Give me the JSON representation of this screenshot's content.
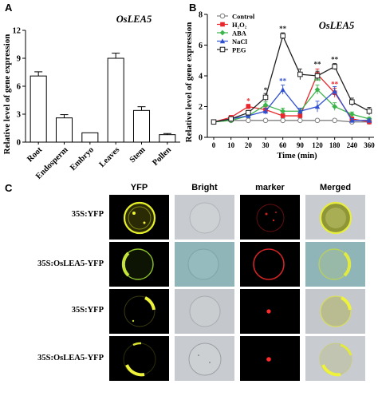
{
  "panel_labels": {
    "a": "A",
    "b": "B",
    "c": "C"
  },
  "chart_data": [
    {
      "type": "bar",
      "title": "OsLEA5",
      "ylabel": "Relative level of gene expression",
      "xlabel": "",
      "categories": [
        "Root",
        "Endosperm",
        "Embryo",
        "Leaves",
        "Stem",
        "Pollen"
      ],
      "values": [
        7.1,
        2.6,
        1.0,
        9.0,
        3.4,
        0.8
      ],
      "errors": [
        0.45,
        0.35,
        0.0,
        0.55,
        0.4,
        0.12
      ],
      "ylim": [
        0,
        12
      ],
      "yticks": [
        "0",
        "3",
        "6",
        "9",
        "12"
      ],
      "grid": false
    },
    {
      "type": "line",
      "title": "OsLEA5",
      "ylabel": "Relative level of gene expression",
      "xlabel": "Time (min)",
      "x": [
        "0",
        "10",
        "20",
        "30",
        "60",
        "90",
        "120",
        "180",
        "240",
        "360"
      ],
      "ylim": [
        0,
        8
      ],
      "yticks": [
        "0",
        "2",
        "4",
        "6",
        "8"
      ],
      "legend_position": "top-left",
      "series": [
        {
          "name": "Control",
          "color": "#808080",
          "marker": "circle-open",
          "values": [
            1.0,
            1.1,
            1.1,
            1.1,
            1.1,
            1.1,
            1.1,
            1.1,
            1.0,
            1.0
          ],
          "errors": [
            0.1,
            0.1,
            0.1,
            0.1,
            0.1,
            0.1,
            0.1,
            0.1,
            0.1,
            0.1
          ]
        },
        {
          "name": "H₂O₂",
          "color": "#e8262b",
          "marker": "square",
          "values": [
            1.0,
            1.3,
            2.0,
            1.8,
            1.4,
            1.4,
            4.1,
            2.9,
            1.2,
            1.0
          ],
          "errors": [
            0.1,
            0.12,
            0.15,
            0.2,
            0.15,
            0.15,
            0.35,
            0.3,
            0.12,
            0.1
          ]
        },
        {
          "name": "ABA",
          "color": "#3cb44b",
          "marker": "diamond",
          "values": [
            1.0,
            1.1,
            1.4,
            2.1,
            1.7,
            1.7,
            3.1,
            2.0,
            1.5,
            1.2
          ],
          "errors": [
            0.1,
            0.1,
            0.12,
            0.2,
            0.2,
            0.2,
            0.3,
            0.25,
            0.15,
            0.1
          ]
        },
        {
          "name": "NaCl",
          "color": "#3050d0",
          "marker": "triangle",
          "values": [
            1.0,
            1.2,
            1.4,
            1.7,
            3.1,
            1.7,
            2.0,
            3.0,
            1.1,
            1.1
          ],
          "errors": [
            0.1,
            0.1,
            0.12,
            0.2,
            0.3,
            0.2,
            0.35,
            0.3,
            0.12,
            0.1
          ]
        },
        {
          "name": "PEG",
          "color": "#222222",
          "marker": "square-open",
          "values": [
            1.0,
            1.2,
            1.6,
            2.6,
            6.6,
            4.1,
            4.0,
            4.6,
            2.3,
            1.7
          ],
          "errors": [
            0.1,
            0.12,
            0.15,
            0.25,
            0.2,
            0.35,
            0.3,
            0.2,
            0.25,
            0.25
          ]
        }
      ],
      "annotations": [
        {
          "x": "20",
          "y": 2.2,
          "text": "*",
          "color": "#e8262b"
        },
        {
          "x": "30",
          "y": 2.9,
          "text": "*",
          "color": "#222222"
        },
        {
          "x": "60",
          "y": 6.9,
          "text": "**",
          "color": "#222222"
        },
        {
          "x": "60",
          "y": 3.5,
          "text": "**",
          "color": "#3050d0"
        },
        {
          "x": "120",
          "y": 4.6,
          "text": "**",
          "color": "#222222"
        },
        {
          "x": "120",
          "y": 3.5,
          "text": "**",
          "color": "#3cb44b"
        },
        {
          "x": "180",
          "y": 4.9,
          "text": "**",
          "color": "#222222"
        },
        {
          "x": "180",
          "y": 3.3,
          "text": "**",
          "color": "#e8262b"
        }
      ]
    }
  ],
  "microscopy": {
    "columns": [
      "YFP",
      "Bright",
      "marker",
      "Merged"
    ],
    "rows": [
      "35S:YFP",
      "35S:OsLEA5-YFP",
      "35S:YFP",
      "35S:OsLEA5-YFP"
    ]
  }
}
